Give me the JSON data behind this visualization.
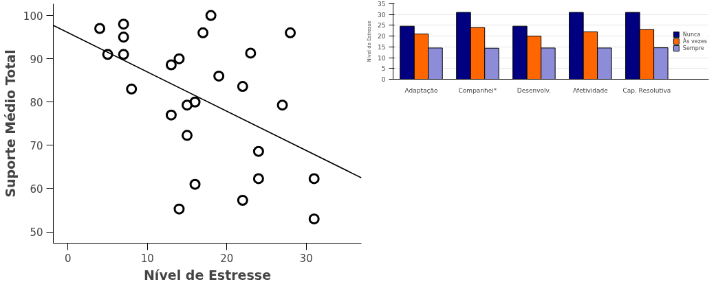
{
  "chart_data": [
    {
      "type": "scatter",
      "xlabel": "Nível de Estresse",
      "ylabel": "Suporte Médio Total",
      "xlim": [
        -1.85,
        36.96
      ],
      "ylim": [
        47.4,
        102.7
      ],
      "xticks": [
        0,
        10,
        20,
        30
      ],
      "yticks": [
        50,
        60,
        70,
        80,
        90,
        100
      ],
      "grid": false,
      "series": [
        {
          "type": "scatter",
          "marker": "circle",
          "color": "#000000",
          "x": [
            4,
            5,
            7,
            7,
            7,
            8,
            13,
            14,
            13,
            15,
            16,
            15,
            16,
            14,
            17,
            18,
            19,
            22,
            23,
            22,
            24,
            24,
            27,
            28,
            31,
            31
          ],
          "values": [
            97,
            91,
            98,
            95,
            91,
            83,
            88.6,
            90,
            77,
            79.3,
            80,
            72.3,
            61,
            55.3,
            96,
            100,
            86,
            83.6,
            91.3,
            57.3,
            68.6,
            62.3,
            79.3,
            96,
            62.3,
            53
          ]
        },
        {
          "type": "line",
          "color": "#000000",
          "x": [
            -1.85,
            36.96
          ],
          "values": [
            97.7,
            62.5
          ]
        }
      ]
    },
    {
      "type": "bar",
      "ylabel": "Nível de Estresse",
      "categories": [
        "Adaptação",
        "Companhei*",
        "Desenvolv.",
        "Afetividade",
        "Cap. Resolutiva"
      ],
      "ylim": [
        0,
        35
      ],
      "yticks": [
        0,
        5,
        10,
        15,
        20,
        25,
        30,
        35
      ],
      "grid": "y",
      "legend": "right",
      "series": [
        {
          "name": "Nunca",
          "color": "#000080",
          "values": [
            24.6,
            31,
            24.6,
            31,
            31
          ]
        },
        {
          "name": "Às vezes",
          "color": "#ff6600",
          "values": [
            21,
            24,
            20,
            22,
            23.1
          ]
        },
        {
          "name": "Sempre",
          "color": "#8c8cd8",
          "values": [
            14.5,
            14.4,
            14.5,
            14.5,
            14.6
          ]
        }
      ]
    }
  ]
}
